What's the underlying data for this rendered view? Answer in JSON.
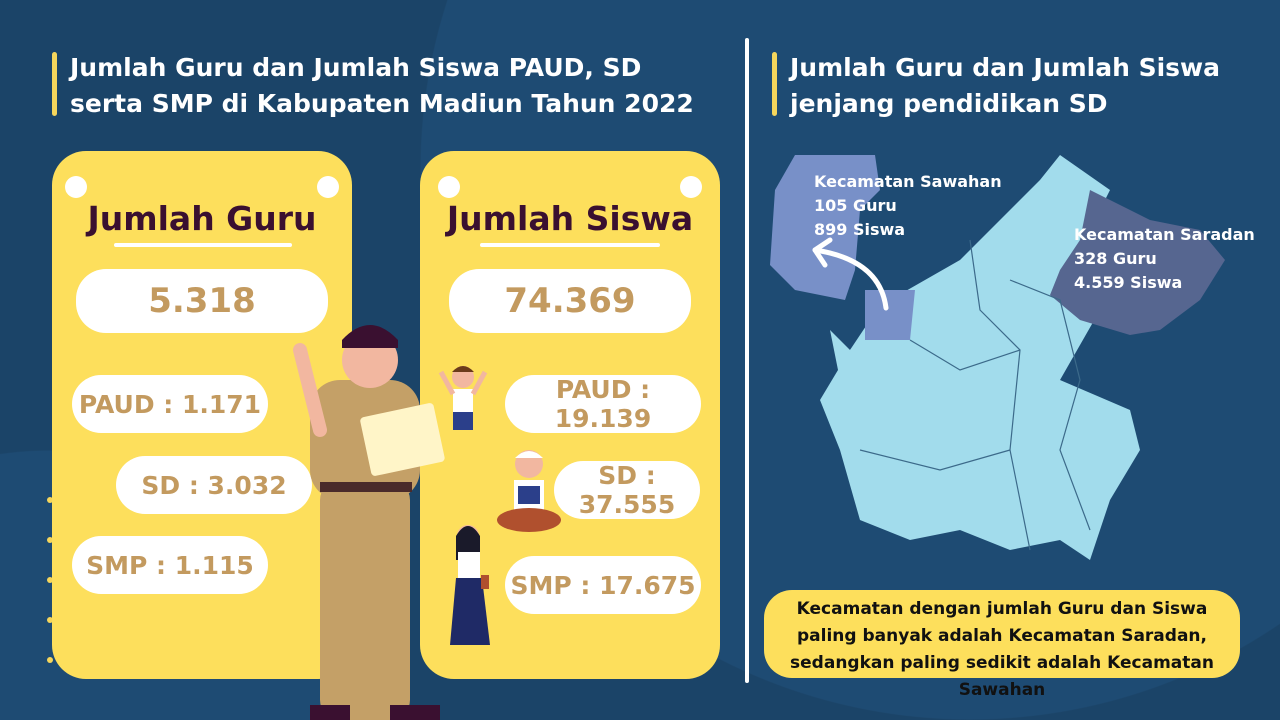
{
  "left": {
    "title": "Jumlah Guru dan Jumlah Siswa PAUD, SD serta SMP di Kabupaten Madiun Tahun 2022",
    "guru": {
      "heading": "Jumlah Guru",
      "total": "5.318",
      "paud": "PAUD : 1.171",
      "sd": "SD : 3.032",
      "smp": "SMP : 1.115"
    },
    "siswa": {
      "heading": "Jumlah Siswa",
      "total": "74.369",
      "paud": "PAUD : 19.139",
      "sd": "SD : 37.555",
      "smp": "SMP : 17.675"
    }
  },
  "right": {
    "title": "Jumlah Guru dan Jumlah Siswa jenjang pendidikan SD",
    "sawahan": {
      "name": "Kecamatan Sawahan",
      "guru": "105 Guru",
      "siswa": "899 Siswa"
    },
    "saradan": {
      "name": "Kecamatan Saradan",
      "guru": "328 Guru",
      "siswa": "4.559 Siswa"
    },
    "note": "Kecamatan dengan jumlah Guru dan Siswa paling banyak adalah Kecamatan Saradan, sedangkan paling sedikit adalah Kecamatan Sawahan"
  },
  "colors": {
    "background": "#1b4468",
    "card": "#fddf5c",
    "map": "#a2dcec",
    "sawahan": "#7890c8",
    "saradan": "#566690",
    "number": "#c39a5f"
  }
}
